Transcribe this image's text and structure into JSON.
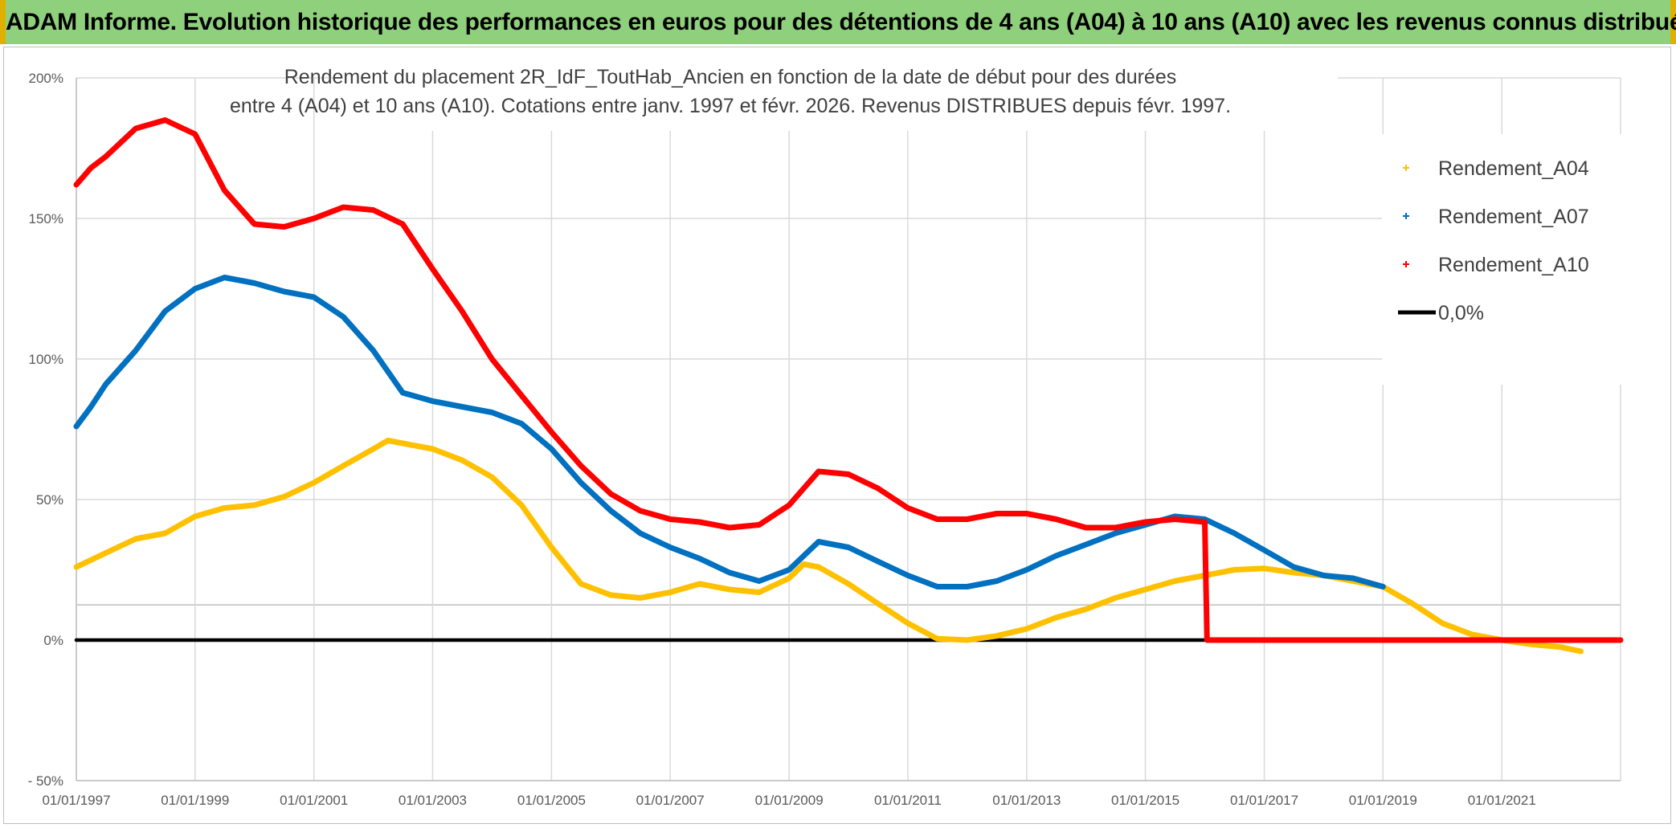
{
  "header": {
    "title": "ADAM Informe. Evolution historique des performances en euros pour des détentions de 4 ans (A04) à 10 ans (A10) avec les revenus connus distribués"
  },
  "chart_data": {
    "type": "line",
    "subtitle_line1": "Rendement du placement 2R_IdF_ToutHab_Ancien en fonction de la date de début pour des durées",
    "subtitle_line2": "entre 4 (A04) et 10 ans (A10). Cotations entre janv. 1997 et févr. 2026. Revenus DISTRIBUES depuis févr. 1997.",
    "x_range": [
      "1997-01-01",
      "2023-01-01"
    ],
    "ylim": [
      -50,
      200
    ],
    "y_ticks": [
      -50,
      0,
      50,
      100,
      150,
      200
    ],
    "y_tick_labels": [
      "- 50%",
      "0%",
      "50%",
      "100%",
      "150%",
      "200%"
    ],
    "x_ticks": [
      "1997-01-01",
      "1999-01-01",
      "2001-01-01",
      "2003-01-01",
      "2005-01-01",
      "2007-01-01",
      "2009-01-01",
      "2011-01-01",
      "2013-01-01",
      "2015-01-01",
      "2017-01-01",
      "2019-01-01",
      "2021-01-01"
    ],
    "x_tick_labels": [
      "01/01/1997",
      "01/01/1999",
      "01/01/2001",
      "01/01/2003",
      "01/01/2005",
      "01/01/2007",
      "01/01/2009",
      "01/01/2011",
      "01/01/2013",
      "01/01/2015",
      "01/01/2017",
      "01/01/2019",
      "01/01/2021"
    ],
    "grid": true,
    "legend_position": "top-right",
    "series": [
      {
        "name": "Rendement_A04",
        "color": "#ffc000",
        "points": [
          [
            "1997-01-01",
            26
          ],
          [
            "1997-07-01",
            31
          ],
          [
            "1998-01-01",
            36
          ],
          [
            "1998-07-01",
            38
          ],
          [
            "1999-01-01",
            44
          ],
          [
            "1999-07-01",
            47
          ],
          [
            "2000-01-01",
            48
          ],
          [
            "2000-07-01",
            51
          ],
          [
            "2001-01-01",
            56
          ],
          [
            "2001-07-01",
            62
          ],
          [
            "2002-01-01",
            68
          ],
          [
            "2002-04-01",
            71
          ],
          [
            "2002-07-01",
            70
          ],
          [
            "2003-01-01",
            68
          ],
          [
            "2003-07-01",
            64
          ],
          [
            "2004-01-01",
            58
          ],
          [
            "2004-07-01",
            48
          ],
          [
            "2005-01-01",
            33
          ],
          [
            "2005-07-01",
            20
          ],
          [
            "2006-01-01",
            16
          ],
          [
            "2006-07-01",
            15
          ],
          [
            "2007-01-01",
            17
          ],
          [
            "2007-07-01",
            20
          ],
          [
            "2008-01-01",
            18
          ],
          [
            "2008-07-01",
            17
          ],
          [
            "2009-01-01",
            22
          ],
          [
            "2009-04-01",
            27
          ],
          [
            "2009-07-01",
            26
          ],
          [
            "2010-01-01",
            20
          ],
          [
            "2010-07-01",
            13
          ],
          [
            "2011-01-01",
            6
          ],
          [
            "2011-07-01",
            0.5
          ],
          [
            "2012-01-01",
            0
          ],
          [
            "2012-07-01",
            1.5
          ],
          [
            "2013-01-01",
            4
          ],
          [
            "2013-07-01",
            8
          ],
          [
            "2014-01-01",
            11
          ],
          [
            "2014-07-01",
            15
          ],
          [
            "2015-01-01",
            18
          ],
          [
            "2015-07-01",
            21
          ],
          [
            "2016-01-01",
            23
          ],
          [
            "2016-07-01",
            25
          ],
          [
            "2017-01-01",
            25.5
          ],
          [
            "2017-07-01",
            24
          ],
          [
            "2018-01-01",
            23
          ],
          [
            "2018-07-01",
            21
          ],
          [
            "2019-01-01",
            19
          ],
          [
            "2019-07-01",
            13
          ],
          [
            "2020-01-01",
            6
          ],
          [
            "2020-07-01",
            2
          ],
          [
            "2021-01-01",
            0
          ],
          [
            "2021-07-01",
            -1.5
          ],
          [
            "2022-01-01",
            -2.5
          ],
          [
            "2022-05-01",
            -4
          ]
        ]
      },
      {
        "name": "Rendement_A07",
        "color": "#0070c0",
        "points": [
          [
            "1997-01-01",
            76
          ],
          [
            "1997-04-01",
            83
          ],
          [
            "1997-07-01",
            91
          ],
          [
            "1998-01-01",
            103
          ],
          [
            "1998-07-01",
            117
          ],
          [
            "1999-01-01",
            125
          ],
          [
            "1999-07-01",
            129
          ],
          [
            "2000-01-01",
            127
          ],
          [
            "2000-07-01",
            124
          ],
          [
            "2001-01-01",
            122
          ],
          [
            "2001-07-01",
            115
          ],
          [
            "2002-01-01",
            103
          ],
          [
            "2002-07-01",
            88
          ],
          [
            "2003-01-01",
            85
          ],
          [
            "2003-07-01",
            83
          ],
          [
            "2004-01-01",
            81
          ],
          [
            "2004-07-01",
            77
          ],
          [
            "2005-01-01",
            68
          ],
          [
            "2005-07-01",
            56
          ],
          [
            "2006-01-01",
            46
          ],
          [
            "2006-07-01",
            38
          ],
          [
            "2007-01-01",
            33
          ],
          [
            "2007-07-01",
            29
          ],
          [
            "2008-01-01",
            24
          ],
          [
            "2008-07-01",
            21
          ],
          [
            "2009-01-01",
            25
          ],
          [
            "2009-07-01",
            35
          ],
          [
            "2010-01-01",
            33
          ],
          [
            "2010-07-01",
            28
          ],
          [
            "2011-01-01",
            23
          ],
          [
            "2011-07-01",
            19
          ],
          [
            "2012-01-01",
            19
          ],
          [
            "2012-07-01",
            21
          ],
          [
            "2013-01-01",
            25
          ],
          [
            "2013-07-01",
            30
          ],
          [
            "2014-01-01",
            34
          ],
          [
            "2014-07-01",
            38
          ],
          [
            "2015-01-01",
            41
          ],
          [
            "2015-07-01",
            44
          ],
          [
            "2016-01-01",
            43
          ],
          [
            "2016-07-01",
            38
          ],
          [
            "2017-01-01",
            32
          ],
          [
            "2017-07-01",
            26
          ],
          [
            "2018-01-01",
            23
          ],
          [
            "2018-07-01",
            22
          ],
          [
            "2019-01-01",
            19
          ]
        ]
      },
      {
        "name": "Rendement_A10",
        "color": "#ff0000",
        "points": [
          [
            "1997-01-01",
            162
          ],
          [
            "1997-04-01",
            168
          ],
          [
            "1997-07-01",
            172
          ],
          [
            "1998-01-01",
            182
          ],
          [
            "1998-07-01",
            185
          ],
          [
            "1999-01-01",
            180
          ],
          [
            "1999-07-01",
            160
          ],
          [
            "2000-01-01",
            148
          ],
          [
            "2000-07-01",
            147
          ],
          [
            "2001-01-01",
            150
          ],
          [
            "2001-07-01",
            154
          ],
          [
            "2002-01-01",
            153
          ],
          [
            "2002-07-01",
            148
          ],
          [
            "2003-01-01",
            132
          ],
          [
            "2003-07-01",
            117
          ],
          [
            "2004-01-01",
            100
          ],
          [
            "2004-07-01",
            87
          ],
          [
            "2005-01-01",
            74
          ],
          [
            "2005-07-01",
            62
          ],
          [
            "2006-01-01",
            52
          ],
          [
            "2006-07-01",
            46
          ],
          [
            "2007-01-01",
            43
          ],
          [
            "2007-07-01",
            42
          ],
          [
            "2008-01-01",
            40
          ],
          [
            "2008-07-01",
            41
          ],
          [
            "2009-01-01",
            48
          ],
          [
            "2009-07-01",
            60
          ],
          [
            "2010-01-01",
            59
          ],
          [
            "2010-07-01",
            54
          ],
          [
            "2011-01-01",
            47
          ],
          [
            "2011-07-01",
            43
          ],
          [
            "2012-01-01",
            43
          ],
          [
            "2012-07-01",
            45
          ],
          [
            "2013-01-01",
            45
          ],
          [
            "2013-07-01",
            43
          ],
          [
            "2014-01-01",
            40
          ],
          [
            "2014-07-01",
            40
          ],
          [
            "2015-01-01",
            42
          ],
          [
            "2015-07-01",
            43
          ],
          [
            "2016-01-01",
            42
          ],
          [
            "2016-01-15",
            0
          ],
          [
            "2023-01-01",
            0
          ]
        ]
      },
      {
        "name": "0,0%",
        "color": "#000000",
        "points": [
          [
            "1997-01-01",
            0
          ],
          [
            "2016-01-01",
            0
          ]
        ]
      }
    ]
  }
}
